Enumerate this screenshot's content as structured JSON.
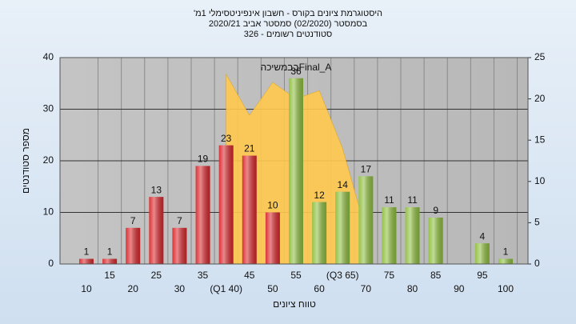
{
  "chart_data": {
    "type": "bar",
    "title": "היסטוגרמת ציונים בקורס - חשבון אינפיניטסימלי 1מ'",
    "subtitle": [
      "בסמסטר (02/2020)  סמסטר אביב 2020/21",
      "סטודנטים רשומים - 326"
    ],
    "x_label": "טווח ציונים",
    "y_label": "מספר סטודנטים",
    "categories": [
      "10",
      "15",
      "20",
      "25",
      "30",
      "35",
      "(Q1 40)",
      "45",
      "50",
      "55",
      "60",
      "(Q3 65)",
      "70",
      "75",
      "80",
      "85",
      "90",
      "95",
      "100"
    ],
    "values": [
      1,
      1,
      7,
      13,
      7,
      19,
      23,
      21,
      10,
      36,
      12,
      14,
      17,
      11,
      11,
      9,
      null,
      4,
      1
    ],
    "colors": [
      "#d9282d",
      "#d9282d",
      "#d9282d",
      "#d9282d",
      "#d9282d",
      "#d9282d",
      "#d9282d",
      "#d9282d",
      "#d9282d",
      "#8fbf3f",
      "#8fbf3f",
      "#8fbf3f",
      "#8fbf3f",
      "#8fbf3f",
      "#8fbf3f",
      "#8fbf3f",
      "#8fbf3f",
      "#8fbf3f",
      "#8fbf3f"
    ],
    "area": {
      "name": "בבמשיכהFinal_A",
      "color": "#ffc94d",
      "axis": "y2",
      "values": [
        null,
        null,
        null,
        null,
        null,
        null,
        23,
        18,
        22,
        20,
        21,
        14,
        4,
        null,
        null,
        null,
        null,
        null,
        null
      ]
    },
    "ylim": [
      0,
      40
    ],
    "yticks": [
      0,
      10,
      20,
      30,
      40
    ],
    "y2lim": [
      0,
      25
    ],
    "y2ticks": [
      0,
      5,
      10,
      15,
      20,
      25
    ],
    "grid": true
  }
}
